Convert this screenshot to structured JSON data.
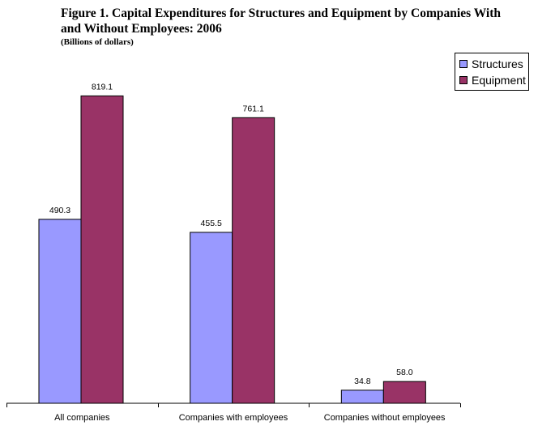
{
  "figure": {
    "title": "Figure 1. Capital Expenditures for Structures and Equipment by Companies With and Without Employees: 2006",
    "subtitle": "(Billions of dollars)"
  },
  "colors": {
    "structures": "#9999ff",
    "equipment": "#993366"
  },
  "chart_data": {
    "type": "bar",
    "title": "Figure 1. Capital Expenditures for Structures and Equipment by Companies With and Without Employees: 2006",
    "subtitle": "(Billions of dollars)",
    "categories": [
      "All companies",
      "Companies with employees",
      "Companies without employees"
    ],
    "series": [
      {
        "name": "Structures",
        "values": [
          490.3,
          455.5,
          34.8
        ],
        "labels": [
          "490.3",
          "455.5",
          "34.8"
        ]
      },
      {
        "name": "Equipment",
        "values": [
          819.1,
          761.1,
          58.0
        ],
        "labels": [
          "819.1",
          "761.1",
          "58.0"
        ]
      }
    ],
    "ylim": [
      0,
      900
    ],
    "grid": false,
    "legend": "top-right",
    "xlabel": "",
    "ylabel": ""
  }
}
